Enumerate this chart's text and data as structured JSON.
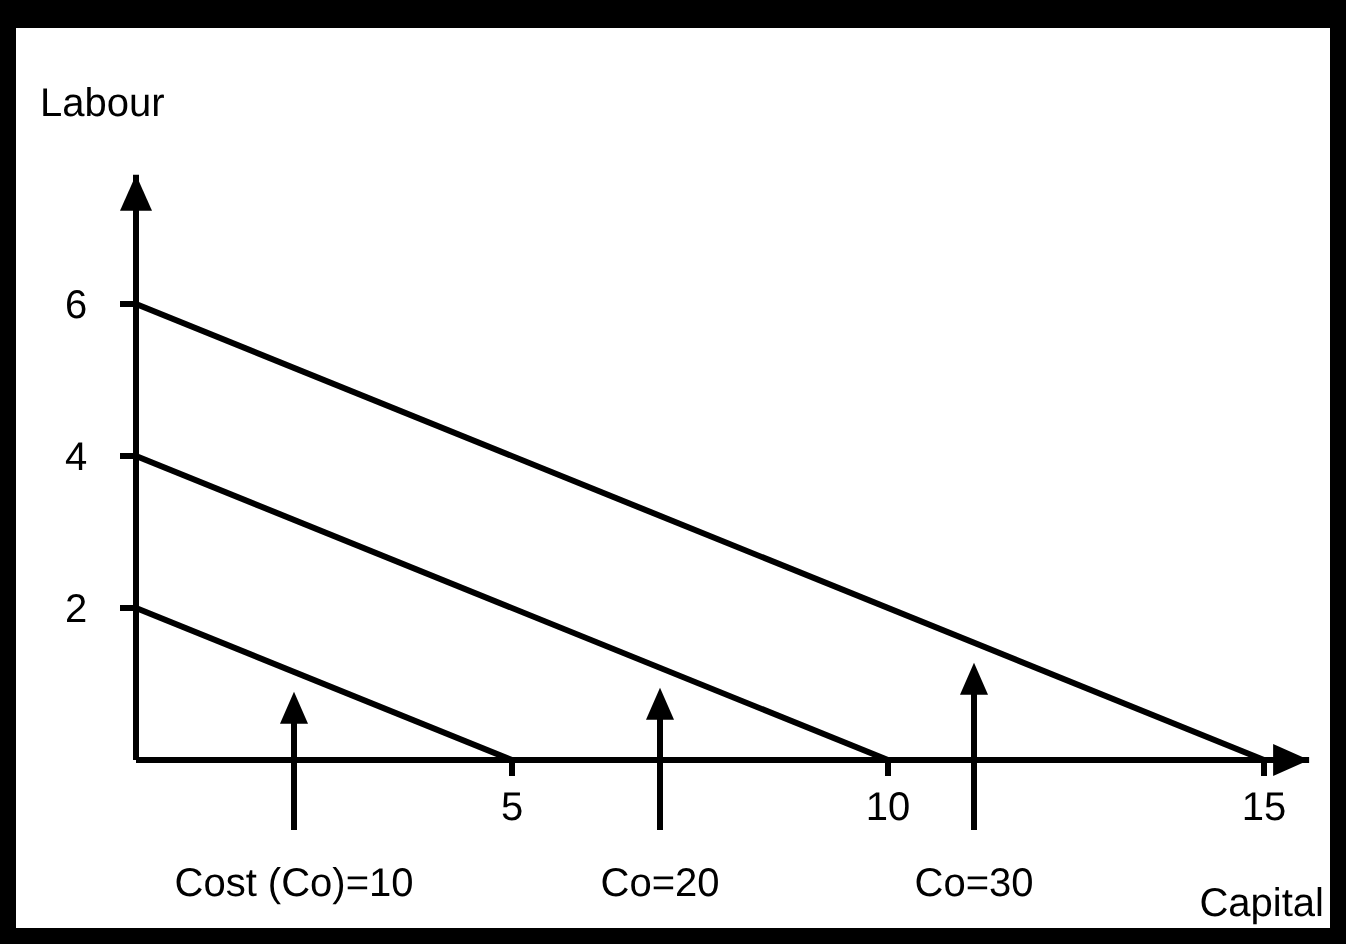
{
  "chart_data": {
    "type": "line",
    "xlabel": "Capital",
    "ylabel": "Labour",
    "xlim": [
      0,
      15.6
    ],
    "ylim": [
      0,
      7.7
    ],
    "xticks": [
      5,
      10,
      15
    ],
    "yticks": [
      2,
      4,
      6
    ],
    "grid": false,
    "marker": "none",
    "line_style": "solid",
    "series": [
      {
        "color": "#000000",
        "x": [
          0,
          5
        ],
        "values": [
          2,
          0
        ]
      },
      {
        "color": "#000000",
        "x": [
          0,
          10
        ],
        "values": [
          4,
          0
        ]
      },
      {
        "color": "#000000",
        "x": [
          0,
          15
        ],
        "values": [
          6,
          0
        ]
      }
    ],
    "annotations": [
      "Cost (Co)=10",
      "Co=20",
      "Co=30"
    ]
  }
}
